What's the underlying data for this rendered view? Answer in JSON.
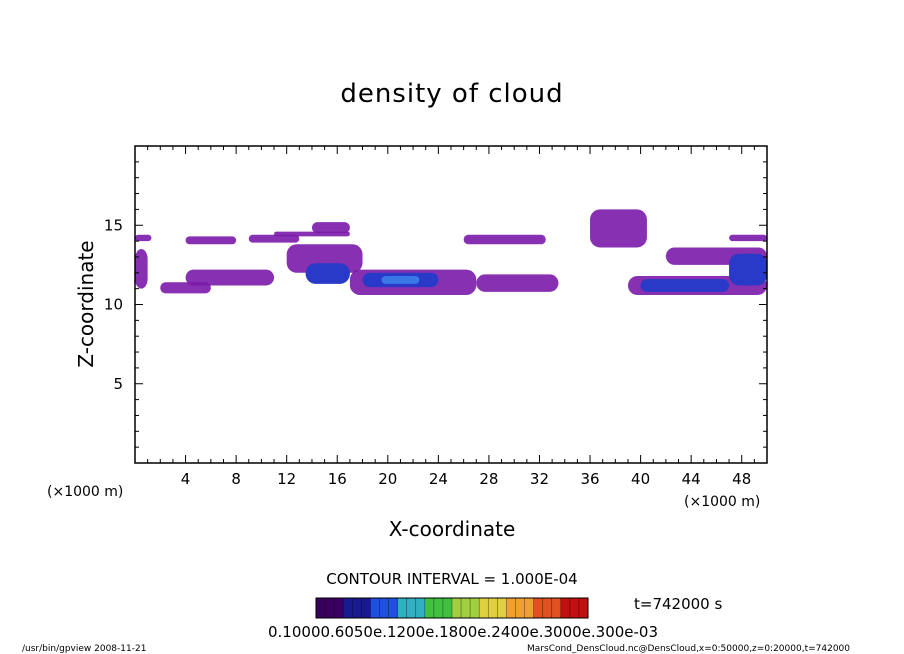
{
  "chart_data": {
    "type": "heatmap",
    "title": "density of cloud",
    "xlabel": "X-coordinate",
    "ylabel": "Z-coordinate",
    "x_unit": "(×1000 m)",
    "xlim": [
      0,
      50
    ],
    "ylim": [
      0,
      20
    ],
    "x_ticks": [
      "4",
      "8",
      "12",
      "16",
      "20",
      "24",
      "28",
      "32",
      "36",
      "40",
      "44",
      "48"
    ],
    "y_ticks": [
      "5",
      "10",
      "15"
    ],
    "contour_interval": "CONTOUR INTERVAL = 1.000E-04",
    "time_label": "t=742000 s",
    "colorbar_labels": "0.10000.6050e.1200e.1800e.2400e.3000e.300e-03",
    "footer_left": "/usr/bin/gpview   2008-11-21",
    "footer_right": "MarsCond_DensCloud.nc@DensCloud,x=0:50000,z=0:20000,t=742000",
    "colorbar_colors": [
      "#3a0060",
      "#1a1a90",
      "#2050e0",
      "#30b0c0",
      "#40c040",
      "#a0d040",
      "#e0d040",
      "#f0a030",
      "#e05020",
      "#c01010"
    ],
    "cloud_layers": [
      {
        "x": [
          0.0,
          1.3
        ],
        "z": [
          14.0,
          14.4
        ],
        "level": 1
      },
      {
        "x": [
          0.0,
          1.0
        ],
        "z": [
          11.0,
          13.5
        ],
        "level": 1
      },
      {
        "x": [
          2.0,
          6.0
        ],
        "z": [
          10.7,
          11.4
        ],
        "level": 1
      },
      {
        "x": [
          4.0,
          11.0
        ],
        "z": [
          11.2,
          12.2
        ],
        "level": 1
      },
      {
        "x": [
          4.0,
          8.0
        ],
        "z": [
          13.8,
          14.3
        ],
        "level": 1
      },
      {
        "x": [
          9.0,
          13.0
        ],
        "z": [
          13.9,
          14.4
        ],
        "level": 1
      },
      {
        "x": [
          11.0,
          17.0
        ],
        "z": [
          14.3,
          14.6
        ],
        "level": 1
      },
      {
        "x": [
          12.0,
          18.0
        ],
        "z": [
          12.0,
          13.8
        ],
        "level": 1
      },
      {
        "x": [
          14.0,
          17.0
        ],
        "z": [
          14.5,
          15.2
        ],
        "level": 1
      },
      {
        "x": [
          13.5,
          17.0
        ],
        "z": [
          11.3,
          12.6
        ],
        "level": 2
      },
      {
        "x": [
          17.0,
          27.0
        ],
        "z": [
          10.6,
          12.2
        ],
        "level": 1
      },
      {
        "x": [
          18.0,
          24.0
        ],
        "z": [
          11.1,
          12.0
        ],
        "level": 2
      },
      {
        "x": [
          19.5,
          22.5
        ],
        "z": [
          11.3,
          11.8
        ],
        "level": 3
      },
      {
        "x": [
          26.0,
          32.5
        ],
        "z": [
          13.8,
          14.4
        ],
        "level": 1
      },
      {
        "x": [
          27.0,
          33.5
        ],
        "z": [
          10.8,
          11.9
        ],
        "level": 1
      },
      {
        "x": [
          36.0,
          40.5
        ],
        "z": [
          13.6,
          16.0
        ],
        "level": 1
      },
      {
        "x": [
          39.0,
          50.0
        ],
        "z": [
          10.6,
          11.8
        ],
        "level": 1
      },
      {
        "x": [
          40.0,
          47.0
        ],
        "z": [
          10.8,
          11.6
        ],
        "level": 2
      },
      {
        "x": [
          42.0,
          50.0
        ],
        "z": [
          12.5,
          13.6
        ],
        "level": 1
      },
      {
        "x": [
          47.0,
          50.0
        ],
        "z": [
          14.0,
          14.4
        ],
        "level": 1
      },
      {
        "x": [
          47.0,
          50.0
        ],
        "z": [
          11.2,
          13.2
        ],
        "level": 2
      }
    ]
  }
}
